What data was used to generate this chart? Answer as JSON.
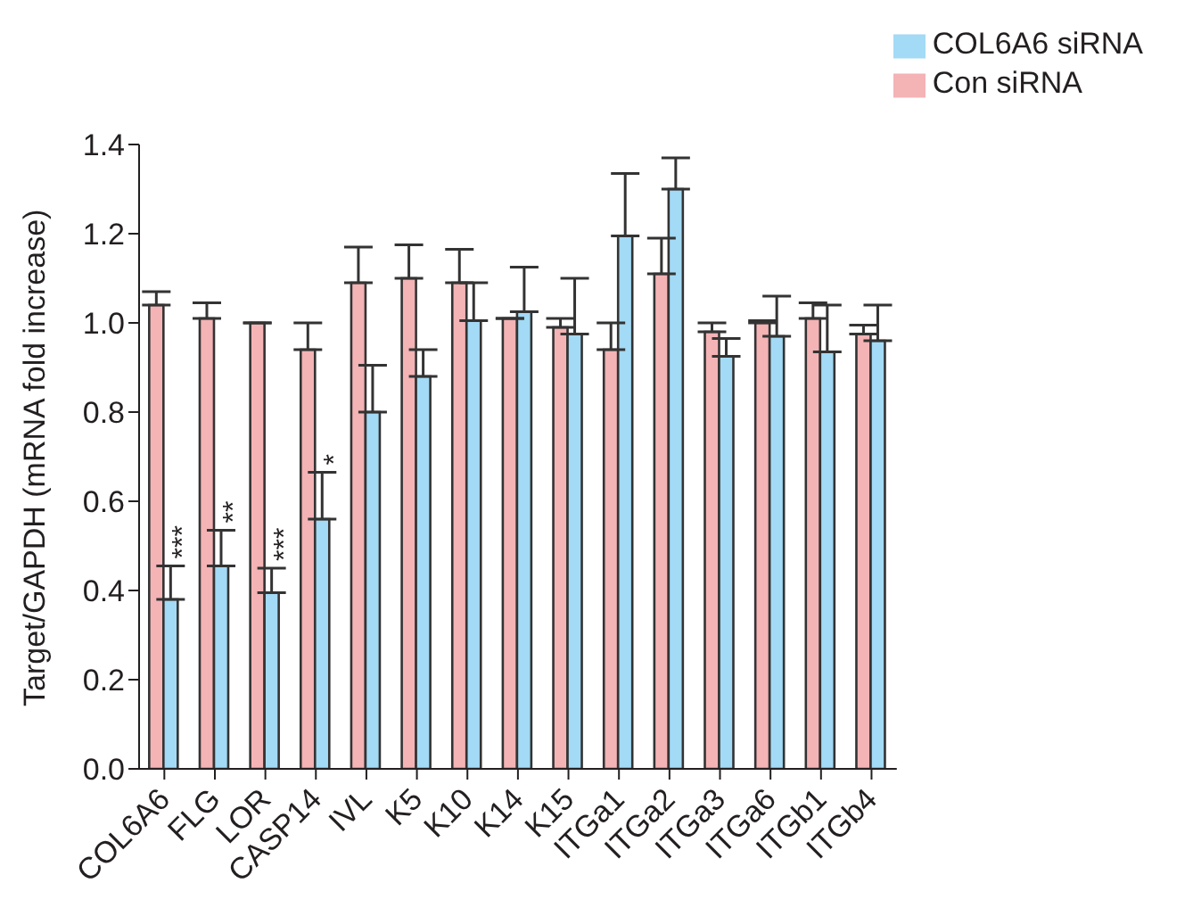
{
  "chart_data": {
    "type": "bar",
    "ylabel": "Target/GAPDH (mRNA fold increase)",
    "categories": [
      "COL6A6",
      "FLG",
      "LOR",
      "CASP14",
      "IVL",
      "K5",
      "K10",
      "K14",
      "K15",
      "ITGa1",
      "ITGa2",
      "ITGa3",
      "ITGa6",
      "ITGb1",
      "ITGb4"
    ],
    "series": [
      {
        "name": "Con siRNA",
        "color": "#f4b3b5",
        "values": [
          1.04,
          1.01,
          1.0,
          0.94,
          1.09,
          1.1,
          1.09,
          1.01,
          0.99,
          0.94,
          1.11,
          0.98,
          1.0,
          1.01,
          0.975
        ],
        "errors": [
          [
            1.04,
            1.07
          ],
          [
            1.01,
            1.045
          ],
          null,
          [
            0.94,
            1.0
          ],
          [
            1.09,
            1.17
          ],
          [
            1.1,
            1.175
          ],
          [
            1.09,
            1.165
          ],
          [
            1.01,
            1.01
          ],
          [
            0.99,
            1.01
          ],
          [
            0.94,
            1.0
          ],
          [
            1.11,
            1.19
          ],
          [
            0.98,
            1.0
          ],
          [
            1.0,
            1.005
          ],
          [
            1.01,
            1.045
          ],
          [
            0.975,
            0.995
          ]
        ]
      },
      {
        "name": "COL6A6 siRNA",
        "color": "#a3daf5",
        "values": [
          0.38,
          0.455,
          0.395,
          0.56,
          0.8,
          0.88,
          1.005,
          1.025,
          0.975,
          1.195,
          1.3,
          0.925,
          0.97,
          0.935,
          0.96
        ],
        "errors": [
          [
            0.38,
            0.455
          ],
          [
            0.455,
            0.535
          ],
          [
            0.395,
            0.45
          ],
          [
            0.56,
            0.665
          ],
          [
            0.8,
            0.905
          ],
          [
            0.88,
            0.94
          ],
          [
            1.005,
            1.09
          ],
          [
            1.025,
            1.125
          ],
          [
            0.975,
            1.1
          ],
          [
            1.195,
            1.335
          ],
          [
            1.3,
            1.37
          ],
          [
            0.925,
            0.965
          ],
          [
            0.97,
            1.06
          ],
          [
            0.935,
            1.04
          ],
          [
            0.96,
            1.04
          ]
        ]
      }
    ],
    "annotations": [
      {
        "text": "***",
        "x": "COL6A6",
        "y": 0.455
      },
      {
        "text": "**",
        "x": "FLG",
        "y": 0.535
      },
      {
        "text": "***",
        "x": "LOR",
        "y": 0.45
      },
      {
        "text": "*",
        "x": "CASP14",
        "y": 0.665
      }
    ],
    "ylim": [
      0,
      1.4
    ],
    "yticks": [
      {
        "value": 0,
        "label": "0.0"
      },
      {
        "value": 0.2,
        "label": "0.2"
      },
      {
        "value": 0.4,
        "label": "0.4"
      },
      {
        "value": 0.6,
        "label": "0.6"
      },
      {
        "value": 0.8,
        "label": "0.8"
      },
      {
        "value": 1,
        "label": "1.0"
      },
      {
        "value": 1.2,
        "label": "1.2"
      },
      {
        "value": 1.4,
        "label": "1.4"
      }
    ],
    "grid": false,
    "legend": "top right"
  }
}
